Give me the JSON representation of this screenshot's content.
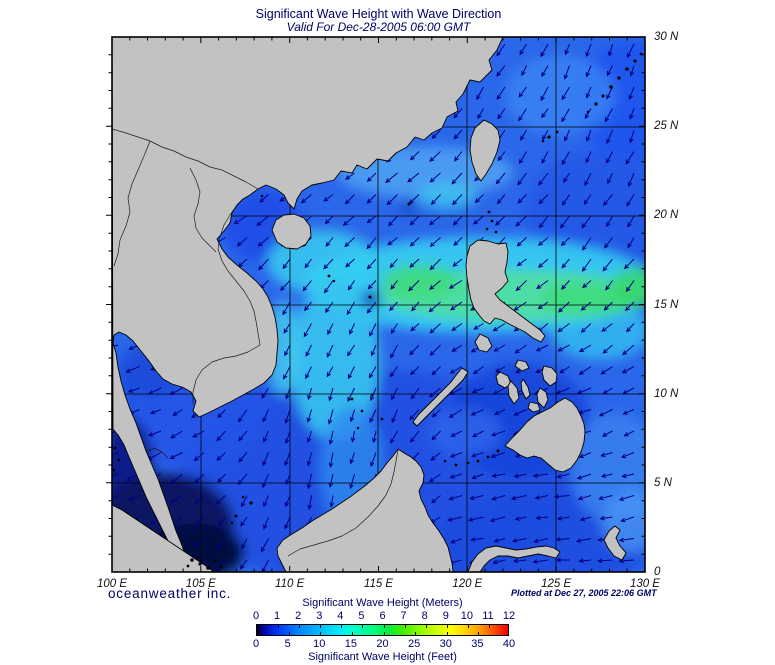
{
  "header": {
    "title": "Significant Wave Height with Wave Direction",
    "subtitle": "Valid For Dec-28-2005 06:00 GMT"
  },
  "footer": {
    "logo": "oceanweather inc.",
    "plotted": "Plotted at Dec 27, 2005 22:06 GMT"
  },
  "axes": {
    "lon_labels": [
      "100 E",
      "105 E",
      "110 E",
      "115 E",
      "120 E",
      "125 E",
      "130 E"
    ],
    "lat_labels": [
      "30 N",
      "25 N",
      "20 N",
      "15 N",
      "10 N",
      "5 N",
      "0"
    ]
  },
  "legend": {
    "top_label": "Significant Wave Height (Meters)",
    "bottom_label": "Significant Wave Height (Feet)",
    "meter_ticks": [
      "0",
      "1",
      "2",
      "3",
      "4",
      "5",
      "6",
      "7",
      "8",
      "9",
      "10",
      "11",
      "12"
    ],
    "feet_ticks": [
      "0",
      "5",
      "10",
      "15",
      "20",
      "25",
      "30",
      "35",
      "40"
    ],
    "gradient": [
      [
        "0%",
        "#000000"
      ],
      [
        "2%",
        "#000099"
      ],
      [
        "8%",
        "#0033ff"
      ],
      [
        "17%",
        "#0088ff"
      ],
      [
        "25%",
        "#00bbff"
      ],
      [
        "33%",
        "#00eeff"
      ],
      [
        "38%",
        "#00ffcc"
      ],
      [
        "46%",
        "#00ff88"
      ],
      [
        "52%",
        "#00ee44"
      ],
      [
        "58%",
        "#44ee00"
      ],
      [
        "66%",
        "#99ff00"
      ],
      [
        "73%",
        "#ddff00"
      ],
      [
        "77%",
        "#ffff00"
      ],
      [
        "84%",
        "#ffcc00"
      ],
      [
        "89%",
        "#ff9900"
      ],
      [
        "95%",
        "#ff4400"
      ],
      [
        "100%",
        "#ee0000"
      ]
    ]
  },
  "theme": {
    "text_navy": "#000066",
    "axis_text": "#111111",
    "arrow": "#000080",
    "land": "#c2c2c2",
    "coast": "#000000",
    "frame": "#000000",
    "sea_base": "#2b67ea",
    "sea_deep": "#1d4de0",
    "sea_dark": "#081463",
    "sea_cyan": "#36cdf2",
    "sea_mint": "#4fdf9e",
    "sea_green": "#3edc79"
  },
  "map": {
    "region": {
      "lon_min": 100,
      "lon_max": 130,
      "lat_min": 0,
      "lat_max": 30
    },
    "grid_step_deg": 5,
    "arrow_field": {
      "lons": [
        100,
        105,
        110,
        115,
        120,
        125,
        130
      ],
      "lats": [
        30,
        25,
        20,
        15,
        10,
        5,
        0
      ],
      "bearings_deg_toward": [
        [
          240,
          240,
          235,
          225,
          215,
          205,
          200
        ],
        [
          242,
          238,
          232,
          226,
          218,
          208,
          202
        ],
        [
          246,
          242,
          230,
          228,
          228,
          222,
          212
        ],
        [
          250,
          246,
          215,
          215,
          235,
          230,
          222
        ],
        [
          252,
          242,
          200,
          200,
          242,
          248,
          240
        ],
        [
          250,
          232,
          195,
          192,
          252,
          258,
          252
        ],
        [
          246,
          226,
          200,
          198,
          262,
          266,
          260
        ]
      ]
    }
  },
  "chart_data": {
    "type": "heatmap",
    "title": "Significant Wave Height with Wave Direction",
    "valid_time": "Dec-28-2005 06:00 GMT",
    "plotted_time": "Dec 27, 2005 22:06 GMT",
    "region": {
      "lon": [
        100,
        130
      ],
      "lat": [
        0,
        30
      ],
      "area": "South China Sea / Philippines / Western Pacific"
    },
    "field": "significant wave height",
    "units_primary": "meters",
    "units_secondary": "feet",
    "scale_meters": [
      0,
      1,
      2,
      3,
      4,
      5,
      6,
      7,
      8,
      9,
      10,
      11,
      12
    ],
    "scale_feet": [
      0,
      5,
      10,
      15,
      20,
      25,
      30,
      35,
      40
    ],
    "overlay": "wave direction arrows (pointing toward direction of travel, mostly SW)",
    "notable_features": [
      "4-6 m (cyan/green) band east of Luzon and through Luzon Strait near 15-18N",
      "3-4 m cyan tongue extending south along 112E into central South China Sea",
      "1-2 m (dark navy) in Malacca Strait / southwest corner",
      "2-3 m blue over Gulf of Thailand, Sulu and Celebes Seas and Western Pacific"
    ]
  }
}
